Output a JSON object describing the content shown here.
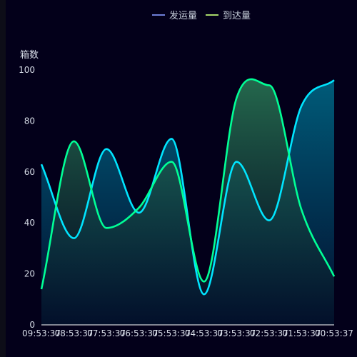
{
  "chart_data": {
    "type": "line",
    "ylabel": "箱数",
    "ylim": [
      0,
      100
    ],
    "yticks": [
      0,
      20,
      40,
      60,
      80,
      100
    ],
    "categories": [
      "09:53:37",
      "08:53:37",
      "07:53:37",
      "06:53:37",
      "05:53:37",
      "04:53:37",
      "03:53:37",
      "02:53:37",
      "01:53:37",
      "00:53:37"
    ],
    "series": [
      {
        "name": "发运量",
        "values": [
          63,
          34,
          69,
          44,
          73,
          12,
          64,
          41,
          86,
          96
        ]
      },
      {
        "name": "到达量",
        "values": [
          14,
          72,
          38,
          46,
          64,
          17,
          89,
          94,
          45,
          19
        ]
      }
    ],
    "legend_position": "top-center",
    "grid": false
  },
  "colors": {
    "background": "#03001a",
    "series1_line": "#00e5ff",
    "series1_area_top": "#005c7a",
    "series2_line": "#00ff96",
    "series2_area_top": "#207050",
    "legend_marker_1": "#6f7fd8",
    "legend_marker_2": "#a8d86a",
    "axis": "#ffffff",
    "label": "#d8dde8"
  }
}
